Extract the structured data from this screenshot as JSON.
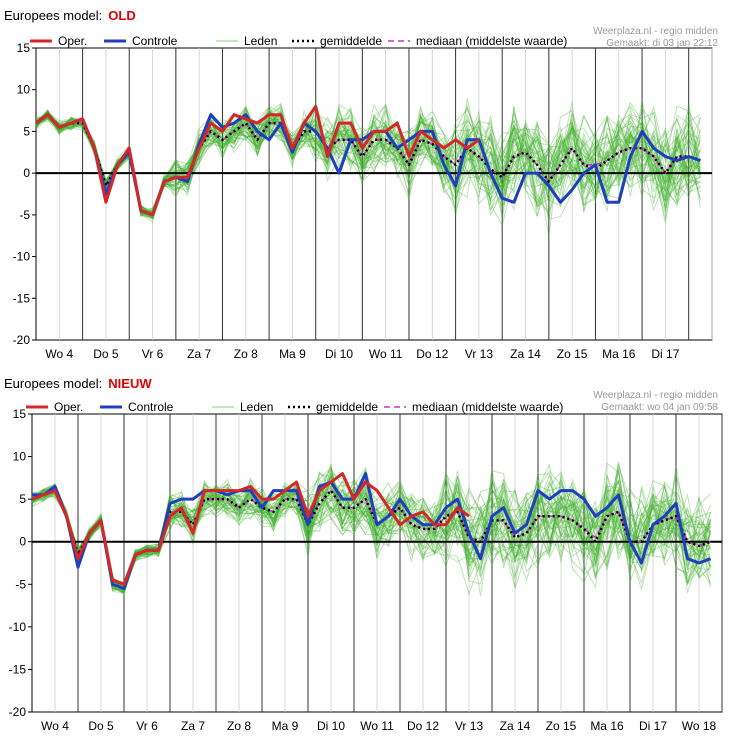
{
  "colors": {
    "oper": "#d62728",
    "controle": "#1f3fbf",
    "leden": "#3fae2a",
    "gemiddelde": "#000000",
    "mediaan": "#cc33cc",
    "tag": "#e00000"
  },
  "chart_data": [
    {
      "type": "line",
      "title": "Europees model:",
      "tag": "OLD",
      "credit_line1": "Weerplaza.nl - regio midden",
      "credit_line2": "Gemaakt: di 03 jan 22:12",
      "ylim": [
        -20,
        15
      ],
      "yticks": [
        "15",
        "10",
        "5",
        "0",
        "-5",
        "-10",
        "-15",
        "-20"
      ],
      "xlim": [
        0,
        14.5
      ],
      "day_labels": [
        "Wo 4",
        "Do 5",
        "Vr 6",
        "Za 7",
        "Zo 8",
        "Ma 9",
        "Di 10",
        "Wo 11",
        "Do 12",
        "Vr 13",
        "Za 14",
        "Zo 15",
        "Ma 16",
        "Di 17"
      ],
      "legend": [
        "Oper.",
        "Controle",
        "Leden",
        "gemiddelde",
        "mediaan (middelste waarde)"
      ],
      "series": [
        {
          "name": "Oper.",
          "x": [
            0,
            0.25,
            0.5,
            0.75,
            1,
            1.25,
            1.5,
            1.75,
            2,
            2.25,
            2.5,
            2.75,
            3,
            3.25,
            3.5,
            3.75,
            4,
            4.25,
            4.5,
            4.75,
            5,
            5.25,
            5.5,
            5.75,
            6,
            6.25,
            6.5,
            6.75,
            7,
            7.25,
            7.5,
            7.75,
            8,
            8.25,
            8.5,
            8.75,
            9,
            9.25,
            9.5
          ],
          "values": [
            6,
            7,
            5.5,
            6,
            6.5,
            3,
            -3.5,
            1,
            3,
            -4.5,
            -5,
            -1,
            -0.5,
            -0.5,
            3,
            6,
            5,
            7,
            6.5,
            6,
            7,
            7,
            3,
            6,
            8,
            2,
            6,
            6,
            3,
            5,
            5,
            6,
            2,
            5,
            4,
            3,
            4,
            3,
            4
          ]
        },
        {
          "name": "Controle",
          "x": [
            0,
            0.25,
            0.5,
            0.75,
            1,
            1.25,
            1.5,
            1.75,
            2,
            2.25,
            2.5,
            2.75,
            3,
            3.25,
            3.5,
            3.75,
            4,
            4.25,
            4.5,
            4.75,
            5,
            5.25,
            5.5,
            5.75,
            6,
            6.25,
            6.5,
            6.75,
            7,
            7.25,
            7.5,
            7.75,
            8,
            8.25,
            8.5,
            8.75,
            9,
            9.25,
            9.5,
            9.75,
            10,
            10.25,
            10.5,
            10.75,
            11,
            11.25,
            11.5,
            11.75,
            12,
            12.25,
            12.5,
            12.75,
            13,
            13.25,
            13.5,
            13.75,
            14,
            14.25
          ],
          "values": [
            6,
            7,
            5.5,
            6,
            6.5,
            3,
            -2.5,
            1,
            2.5,
            -4.5,
            -5,
            -1,
            -0.5,
            -1,
            3.5,
            7,
            5.5,
            6,
            7,
            5,
            4,
            6,
            2.5,
            6,
            5,
            3,
            0,
            4,
            4,
            5,
            5,
            3,
            4,
            5,
            5,
            1,
            -1.5,
            4,
            4,
            0,
            -3,
            -3.5,
            0,
            0,
            -1.5,
            -3.5,
            -2,
            0,
            1,
            -3.5,
            -3.5,
            2,
            5,
            3,
            2,
            1.5,
            2,
            1.5
          ]
        },
        {
          "name": "gemiddelde",
          "x": [
            0,
            0.25,
            0.5,
            0.75,
            1,
            1.25,
            1.5,
            1.75,
            2,
            2.25,
            2.5,
            2.75,
            3,
            3.25,
            3.5,
            3.75,
            4,
            4.25,
            4.5,
            4.75,
            5,
            5.25,
            5.5,
            5.75,
            6,
            6.25,
            6.5,
            6.75,
            7,
            7.25,
            7.5,
            7.75,
            8,
            8.25,
            8.5,
            8.75,
            9,
            9.25,
            9.5,
            9.75,
            10,
            10.25,
            10.5,
            10.75,
            11,
            11.25,
            11.5,
            11.75,
            12,
            12.25,
            12.5,
            12.75,
            13,
            13.25,
            13.5,
            13.75,
            14,
            14.25
          ],
          "values": [
            6,
            7,
            5.5,
            6,
            6,
            3,
            -1.5,
            1,
            2.5,
            -4.5,
            -5,
            -1,
            -0.5,
            -0.5,
            3,
            5,
            4,
            5,
            6,
            4,
            6,
            6,
            3,
            5,
            5,
            3,
            4,
            4,
            2,
            4,
            4,
            3,
            1,
            4,
            3.5,
            2,
            1,
            3,
            2,
            0.5,
            -0.5,
            2,
            2.5,
            1,
            -1,
            1,
            3,
            1,
            0.5,
            1.5,
            2.5,
            3,
            3,
            2,
            0,
            2,
            2,
            1.5
          ]
        },
        {
          "name": "mediaan (middelste waarde)",
          "x": [
            0,
            0.25,
            0.5,
            0.75,
            1,
            1.25,
            1.5,
            1.75,
            2,
            2.25,
            2.5,
            2.75,
            3,
            3.25,
            3.5,
            3.75,
            4,
            4.25,
            4.5,
            4.75,
            5,
            5.25,
            5.5,
            5.75,
            6,
            6.25,
            6.5,
            6.75,
            7,
            7.25,
            7.5,
            7.75,
            8,
            8.25,
            8.5,
            8.75,
            9,
            9.25,
            9.5,
            9.75,
            10,
            10.25,
            10.5,
            10.75,
            11,
            11.25,
            11.5,
            11.75,
            12,
            12.25,
            12.5,
            12.75,
            13,
            13.25,
            13.5,
            13.75,
            14,
            14.25
          ],
          "values": [
            6,
            7,
            5.5,
            6,
            6,
            3,
            -1.5,
            1,
            2.5,
            -4.5,
            -5,
            -1,
            -0.5,
            -0.5,
            3,
            5,
            4,
            5,
            6,
            4,
            6,
            6,
            3,
            5,
            5,
            3,
            4,
            4,
            2,
            4,
            4,
            3,
            1,
            4,
            3.5,
            2,
            1,
            3,
            2,
            0.5,
            -0.5,
            2,
            2.5,
            1,
            -1,
            1,
            3,
            1,
            1,
            1.5,
            2.5,
            3,
            3,
            2,
            0,
            2,
            2,
            1.5
          ]
        }
      ],
      "members": {
        "name": "Leden",
        "count": 50
      }
    },
    {
      "type": "line",
      "title": "Europees model:",
      "tag": "NIEUW",
      "credit_line1": "Weerplaza.nl - regio midden",
      "credit_line2": "Gemaakt: wo 04 jan 09:58",
      "ylim": [
        -20,
        15
      ],
      "yticks": [
        "15",
        "10",
        "5",
        "0",
        "-5",
        "-10",
        "-15",
        "-20"
      ],
      "xlim": [
        0,
        15
      ],
      "day_labels": [
        "Wo 4",
        "Do 5",
        "Vr 6",
        "Za 7",
        "Zo 8",
        "Ma 9",
        "Di 10",
        "Wo 11",
        "Do 12",
        "Vr 13",
        "Za 14",
        "Zo 15",
        "Ma 16",
        "Di 17",
        "Wo 18"
      ],
      "legend": [
        "Oper.",
        "Controle",
        "Leden",
        "gemiddelde",
        "mediaan (middelste waarde)"
      ],
      "series": [
        {
          "name": "Oper.",
          "x": [
            0,
            0.25,
            0.5,
            0.75,
            1,
            1.25,
            1.5,
            1.75,
            2,
            2.25,
            2.5,
            2.75,
            3,
            3.25,
            3.5,
            3.75,
            4,
            4.25,
            4.5,
            4.75,
            5,
            5.25,
            5.5,
            5.75,
            6,
            6.25,
            6.5,
            6.75,
            7,
            7.25,
            7.5,
            7.75,
            8,
            8.25,
            8.5,
            8.75,
            9,
            9.25,
            9.5
          ],
          "values": [
            5,
            5.5,
            6,
            3,
            -2,
            1,
            2.5,
            -4.5,
            -5,
            -1.5,
            -1,
            -1,
            3,
            4,
            1,
            6,
            6,
            6,
            6,
            6.5,
            5,
            5,
            6,
            7,
            3,
            6,
            7,
            8,
            5,
            7,
            6,
            4,
            2,
            3,
            3.5,
            2,
            2,
            4,
            3
          ]
        },
        {
          "name": "Controle",
          "x": [
            0,
            0.25,
            0.5,
            0.75,
            1,
            1.25,
            1.5,
            1.75,
            2,
            2.25,
            2.5,
            2.75,
            3,
            3.25,
            3.5,
            3.75,
            4,
            4.25,
            4.5,
            4.75,
            5,
            5.25,
            5.5,
            5.75,
            6,
            6.25,
            6.5,
            6.75,
            7,
            7.25,
            7.5,
            7.75,
            8,
            8.25,
            8.5,
            8.75,
            9,
            9.25,
            9.5,
            9.75,
            10,
            10.25,
            10.5,
            10.75,
            11,
            11.25,
            11.5,
            11.75,
            12,
            12.25,
            12.5,
            12.75,
            13,
            13.25,
            13.5,
            13.75,
            14,
            14.25,
            14.5,
            14.75
          ],
          "values": [
            5.5,
            5.5,
            6.5,
            3,
            -3,
            1,
            2.5,
            -5,
            -5.5,
            -1.5,
            -1,
            -1,
            4.5,
            5,
            5,
            6,
            6,
            5.5,
            6,
            6,
            4,
            6,
            6,
            6,
            2,
            6.5,
            7,
            5,
            5,
            8,
            2,
            3,
            5,
            3,
            2,
            2,
            4,
            5,
            1,
            -2,
            3,
            4,
            1,
            2,
            6,
            5,
            6,
            6,
            5,
            3,
            4,
            5.5,
            0,
            -2.5,
            2,
            3,
            4.5,
            -2,
            -2.5,
            -2
          ]
        },
        {
          "name": "gemiddelde",
          "x": [
            0,
            0.25,
            0.5,
            0.75,
            1,
            1.25,
            1.5,
            1.75,
            2,
            2.25,
            2.5,
            2.75,
            3,
            3.25,
            3.5,
            3.75,
            4,
            4.25,
            4.5,
            4.75,
            5,
            5.25,
            5.5,
            5.75,
            6,
            6.25,
            6.5,
            6.75,
            7,
            7.25,
            7.5,
            7.75,
            8,
            8.25,
            8.5,
            8.75,
            9,
            9.25,
            9.5,
            9.75,
            10,
            10.25,
            10.5,
            10.75,
            11,
            11.25,
            11.5,
            11.75,
            12,
            12.25,
            12.5,
            12.75,
            13,
            13.25,
            13.5,
            13.75,
            14,
            14.25,
            14.5,
            14.75
          ],
          "values": [
            5,
            5.5,
            6,
            3,
            -1.5,
            1,
            2.5,
            -5,
            -5.5,
            -1.5,
            -1,
            -1,
            3.5,
            3.5,
            2,
            5,
            5,
            5,
            4,
            5,
            4,
            3.5,
            5,
            5,
            2,
            4.5,
            6,
            4,
            4,
            5,
            2,
            3,
            4,
            2,
            1.5,
            1.5,
            3,
            3.5,
            0.5,
            0,
            2.5,
            2.5,
            0.5,
            1,
            3,
            3,
            3,
            2.5,
            1.5,
            0,
            3,
            3.5,
            0,
            0,
            2,
            2.5,
            3,
            0,
            -0.5,
            0
          ]
        },
        {
          "name": "mediaan (middelste waarde)",
          "x": [
            0,
            0.25,
            0.5,
            0.75,
            1,
            1.25,
            1.5,
            1.75,
            2,
            2.25,
            2.5,
            2.75,
            3,
            3.25,
            3.5,
            3.75,
            4,
            4.25,
            4.5,
            4.75,
            5,
            5.25,
            5.5,
            5.75,
            6,
            6.25,
            6.5,
            6.75,
            7,
            7.25,
            7.5,
            7.75,
            8,
            8.25,
            8.5,
            8.75,
            9,
            9.25,
            9.5,
            9.75,
            10,
            10.25,
            10.5,
            10.75,
            11,
            11.25,
            11.5,
            11.75,
            12,
            12.25,
            12.5,
            12.75,
            13,
            13.25,
            13.5,
            13.75,
            14,
            14.25,
            14.5,
            14.75
          ],
          "values": [
            5,
            5.5,
            6,
            3,
            -1.5,
            1,
            2.5,
            -5,
            -5.5,
            -1.5,
            -1,
            -1,
            3.5,
            3.5,
            2,
            5,
            5,
            5,
            4,
            5,
            4,
            3.5,
            5,
            5,
            2,
            4.5,
            6,
            4,
            4,
            5,
            2,
            3,
            4,
            2,
            1.5,
            1.5,
            3,
            3.5,
            0.5,
            0,
            2.5,
            2.5,
            0.5,
            1,
            3,
            3,
            3,
            2.5,
            1.5,
            0.5,
            3,
            3.5,
            0,
            0,
            2,
            2.5,
            3,
            0,
            -0.5,
            0
          ]
        }
      ],
      "members": {
        "name": "Leden",
        "count": 50
      }
    }
  ]
}
